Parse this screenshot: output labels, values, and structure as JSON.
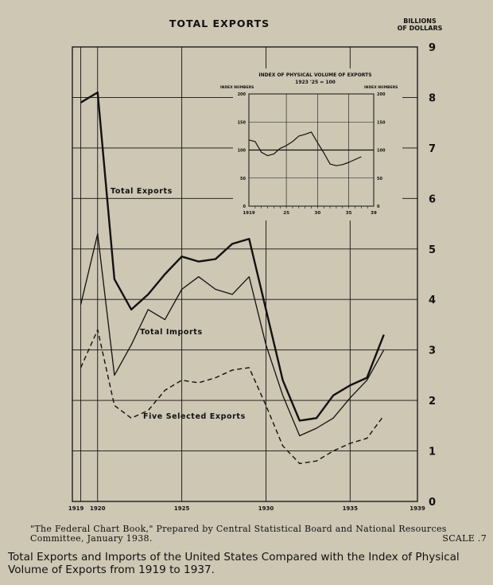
{
  "title": "TOTAL EXPORTS",
  "right_axis_label": [
    "BILLIONS",
    "OF DOLLARS"
  ],
  "caption": {
    "source": "\"The Federal Chart Book,\" Prepared by Central Statistical Board and National Resources Committee, January 1938.",
    "scale": "SCALE .7",
    "title": "Total Exports and Imports of the United States Compared with the Index of Physical Volume of Exports from 1919 to 1937."
  },
  "colors": {
    "background": "#cdc7b3",
    "ink": "#111111"
  },
  "chart_data": [
    {
      "type": "line",
      "title": "TOTAL EXPORTS",
      "ylabel": "BILLIONS OF DOLLARS",
      "xlim": [
        1918.5,
        1939
      ],
      "ylim": [
        0,
        9
      ],
      "x_ticks": [
        "1919",
        "1920",
        "1925",
        "1930",
        "1935",
        "1939"
      ],
      "y_ticks": [
        0,
        1,
        2,
        3,
        4,
        5,
        6,
        7,
        8,
        9
      ],
      "grid": true,
      "x": [
        1919,
        1920,
        1921,
        1922,
        1923,
        1924,
        1925,
        1926,
        1927,
        1928,
        1929,
        1930,
        1931,
        1932,
        1933,
        1934,
        1935,
        1936,
        1937
      ],
      "series": [
        {
          "name": "Total Exports",
          "style": "thick",
          "values": [
            7.9,
            8.1,
            4.4,
            3.8,
            4.1,
            4.5,
            4.85,
            4.75,
            4.8,
            5.1,
            5.2,
            3.8,
            2.4,
            1.6,
            1.65,
            2.1,
            2.3,
            2.45,
            3.3
          ]
        },
        {
          "name": "Total Imports",
          "style": "thin",
          "values": [
            3.9,
            5.3,
            2.5,
            3.1,
            3.8,
            3.6,
            4.2,
            4.45,
            4.2,
            4.1,
            4.45,
            3.1,
            2.1,
            1.3,
            1.45,
            1.65,
            2.05,
            2.4,
            3.0
          ]
        },
        {
          "name": "Five Selected Exports",
          "style": "dashed",
          "values": [
            2.65,
            3.4,
            1.9,
            1.65,
            1.8,
            2.2,
            2.4,
            2.35,
            2.45,
            2.6,
            2.65,
            1.9,
            1.1,
            0.75,
            0.8,
            1.0,
            1.15,
            1.25,
            1.7
          ]
        }
      ]
    },
    {
      "type": "line",
      "title": "INDEX OF PHYSICAL VOLUME OF EXPORTS",
      "subtitle": "1923 '25 = 100",
      "ylabel": "INDEX NUMBERS",
      "xlim": [
        1919,
        1939
      ],
      "ylim": [
        0,
        200
      ],
      "x_ticks": [
        "1919",
        "25",
        "30",
        "35",
        "39"
      ],
      "y_ticks": [
        0,
        50,
        100,
        150,
        200
      ],
      "grid": true,
      "x": [
        1919,
        1920,
        1921,
        1922,
        1923,
        1924,
        1925,
        1926,
        1927,
        1928,
        1929,
        1930,
        1931,
        1932,
        1933,
        1934,
        1935,
        1936,
        1937
      ],
      "series": [
        {
          "name": "Index",
          "values": [
            118,
            115,
            96,
            90,
            93,
            103,
            108,
            115,
            125,
            128,
            132,
            113,
            95,
            75,
            72,
            74,
            78,
            83,
            88
          ]
        }
      ]
    }
  ]
}
